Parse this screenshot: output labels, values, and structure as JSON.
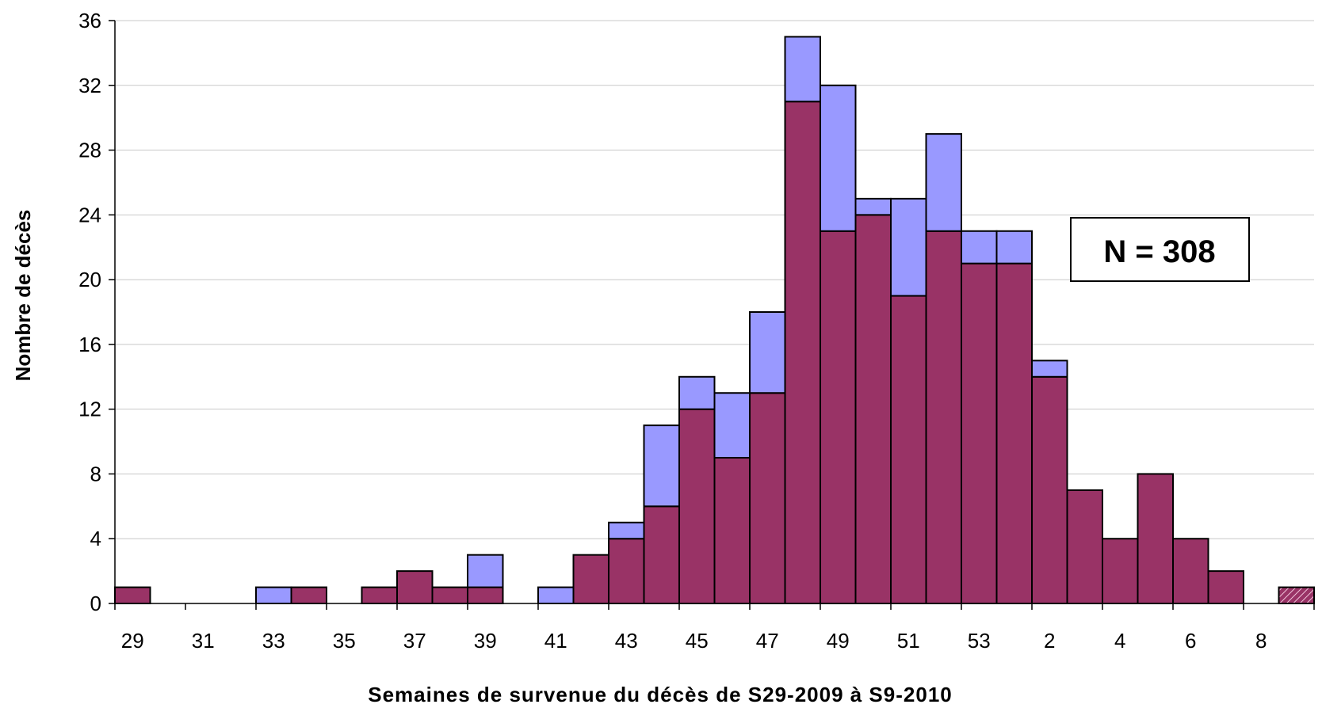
{
  "chart_data": {
    "type": "bar",
    "stacked": true,
    "xlabel": "Semaines de survenue du décès de S29-2009 à S9-2010",
    "ylabel": "Nombre de décès",
    "ylim": [
      0,
      36
    ],
    "yticks": [
      0,
      4,
      8,
      12,
      16,
      20,
      24,
      28,
      32,
      36
    ],
    "grid": true,
    "categories": [
      "29",
      "30",
      "31",
      "32",
      "33",
      "34",
      "35",
      "36",
      "37",
      "38",
      "39",
      "40",
      "41",
      "42",
      "43",
      "44",
      "45",
      "46",
      "47",
      "48",
      "49",
      "50",
      "51",
      "52",
      "53",
      "1",
      "2",
      "3",
      "4",
      "5",
      "6",
      "7",
      "8",
      "9"
    ],
    "xtick_labels": [
      "29",
      "31",
      "33",
      "35",
      "37",
      "39",
      "41",
      "43",
      "45",
      "47",
      "49",
      "51",
      "53",
      "2",
      "4",
      "6",
      "8"
    ],
    "series": [
      {
        "color": "#993366",
        "values": [
          1,
          0,
          0,
          0,
          0,
          1,
          0,
          1,
          2,
          1,
          1,
          0,
          0,
          3,
          4,
          6,
          12,
          9,
          13,
          31,
          23,
          24,
          19,
          23,
          21,
          21,
          14,
          7,
          4,
          8,
          4,
          2,
          0,
          1
        ]
      },
      {
        "color": "#9999ff",
        "values": [
          0,
          0,
          0,
          0,
          1,
          0,
          0,
          0,
          0,
          0,
          2,
          0,
          1,
          0,
          1,
          5,
          2,
          4,
          5,
          4,
          9,
          1,
          6,
          6,
          2,
          2,
          1,
          0,
          0,
          0,
          0,
          0,
          0,
          0
        ]
      }
    ],
    "hatched_last_bar": true,
    "annotation": "N = 308"
  }
}
